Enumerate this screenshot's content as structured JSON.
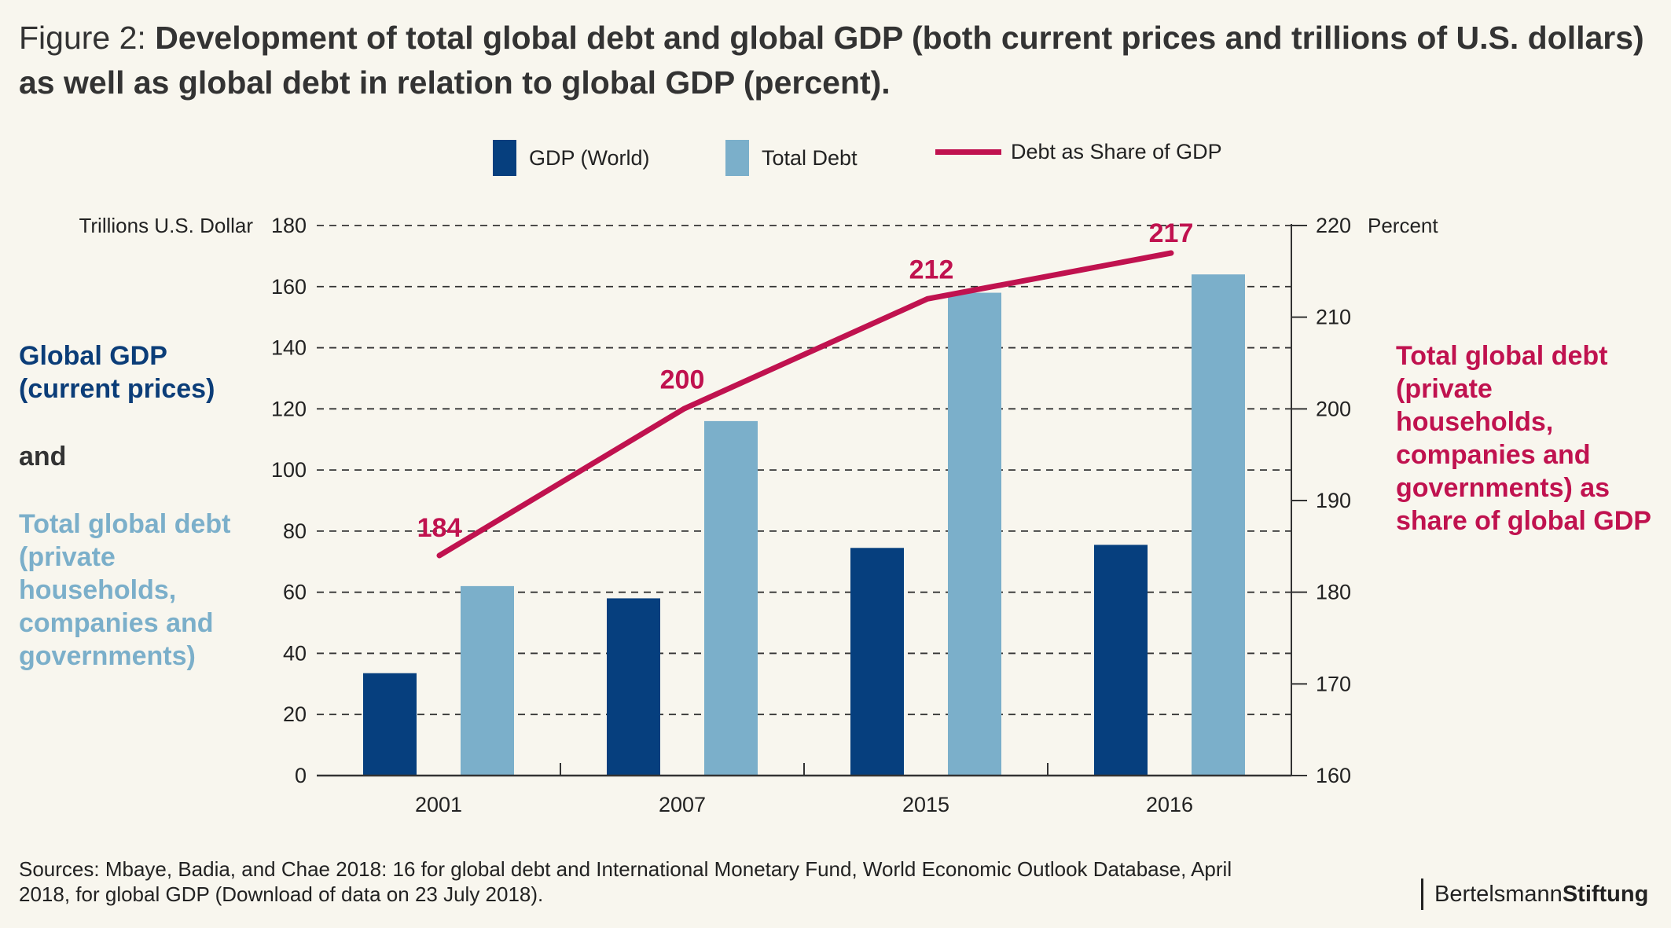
{
  "title": {
    "prefix": "Figure 2: ",
    "main": "Development of total global debt and global GDP (both current prices and trillions of U.S. dollars) as well as global debt in relation to global GDP (percent)."
  },
  "legend": {
    "gdp": "GDP (World)",
    "debt": "Total Debt",
    "share": "Debt as Share of GDP"
  },
  "side_left": {
    "gdp_label": "Global GDP (current prices)",
    "and_label": "and",
    "debt_label": "Total global debt (private households, companies and governments)"
  },
  "side_right": {
    "share_label": "Total global debt (private households, companies and governments) as share of global GDP"
  },
  "sources": "Sources: Mbaye, Badia, and Chae 2018: 16 for global debt and International Monetary Fund, World Economic Outlook Database, April 2018, for global GDP (Download of data on 23 July 2018).",
  "brand": {
    "regular": "Bertelsmann",
    "bold": "Stiftung"
  },
  "colors": {
    "gdp": "#063f7e",
    "debt": "#7bafca",
    "share": "#c0124f",
    "gdp_text": "#0b3d78",
    "debt_text": "#7bafca"
  },
  "chart_data": {
    "type": "bar",
    "categories": [
      "2001",
      "2007",
      "2015",
      "2016"
    ],
    "series": [
      {
        "name": "GDP (World)",
        "axis": "left",
        "type": "bar",
        "values": [
          33.5,
          58,
          74.5,
          75.5
        ]
      },
      {
        "name": "Total Debt",
        "axis": "left",
        "type": "bar",
        "values": [
          62,
          116,
          158,
          164
        ]
      },
      {
        "name": "Debt as Share of GDP",
        "axis": "right",
        "type": "line",
        "values": [
          184,
          200,
          212,
          217
        ]
      }
    ],
    "data_labels": [
      "184",
      "200",
      "212",
      "217"
    ],
    "ylabel_left": "Trillions U.S. Dollar",
    "ylabel_right": "Percent",
    "ylim_left": [
      0,
      180
    ],
    "ylim_right": [
      160,
      220
    ],
    "yticks_left": [
      0,
      20,
      40,
      60,
      80,
      100,
      120,
      140,
      160,
      180
    ],
    "yticks_right": [
      160,
      170,
      180,
      190,
      200,
      210,
      220
    ],
    "grid": true,
    "legend_position": "top"
  }
}
